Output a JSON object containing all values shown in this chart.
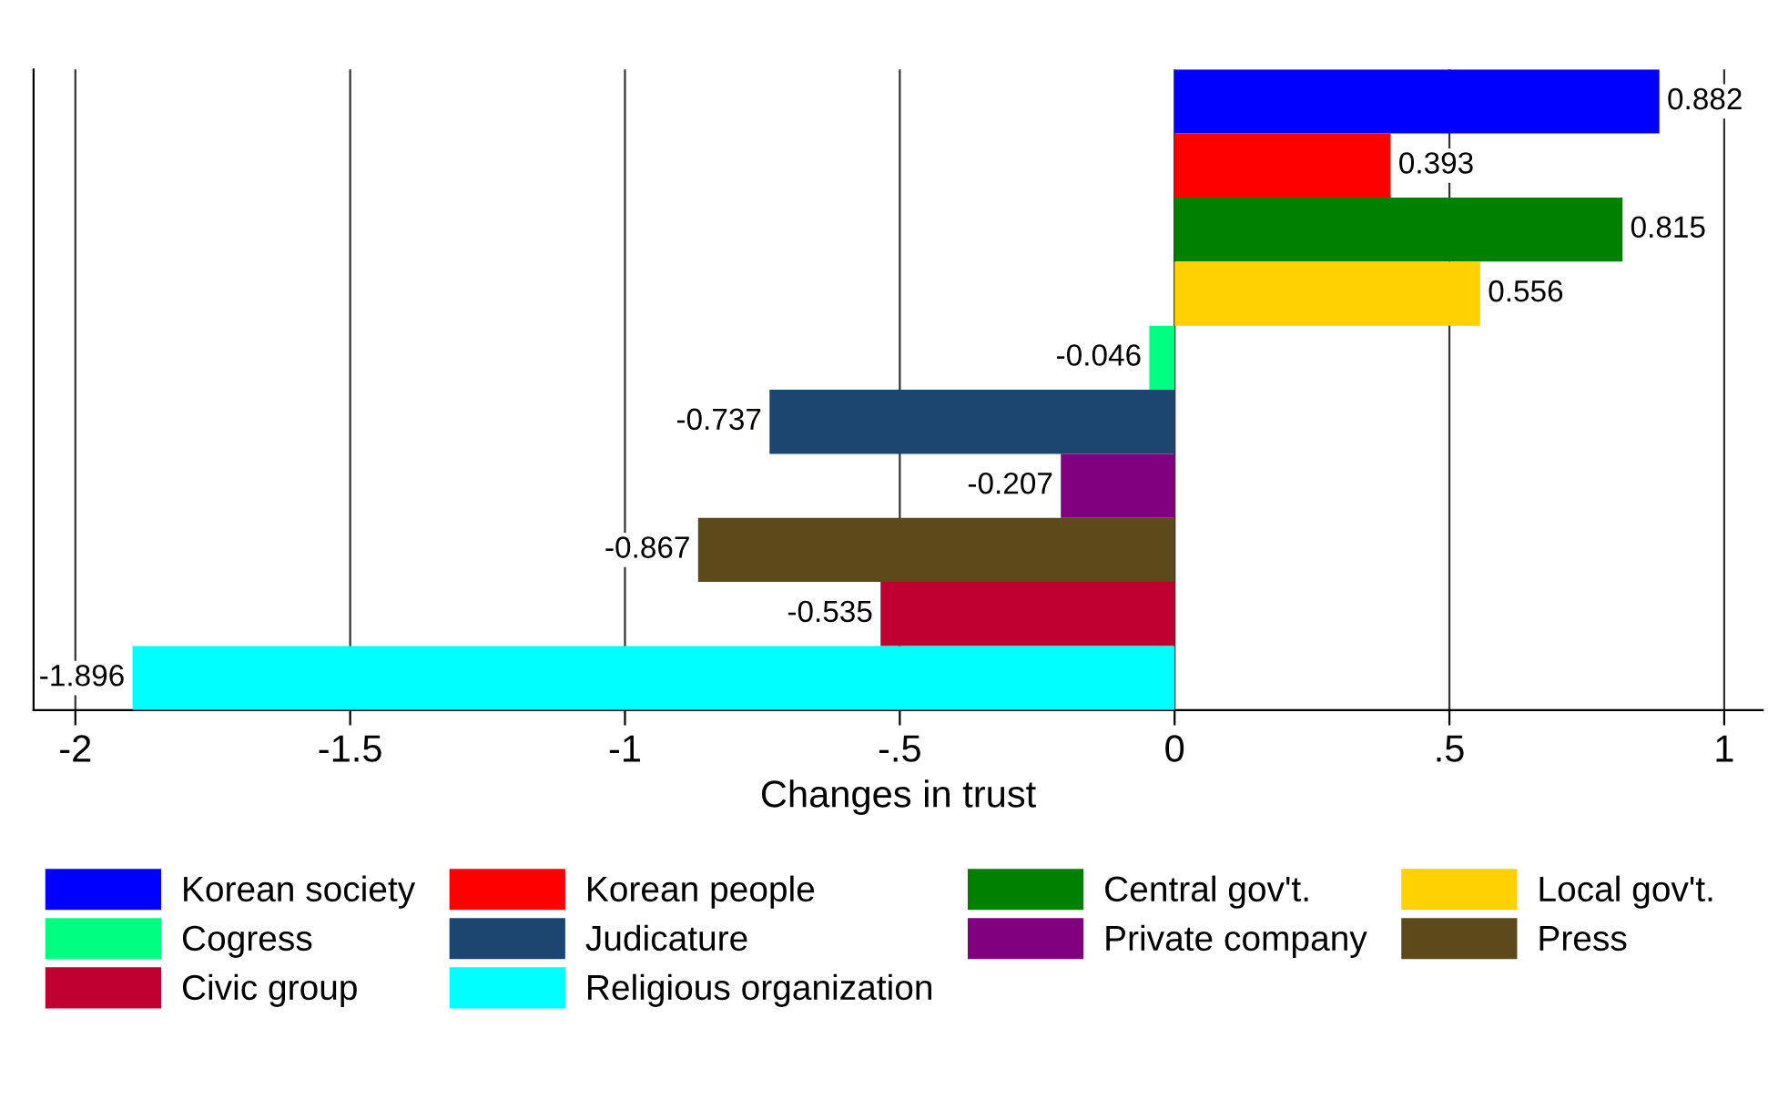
{
  "chart_data": {
    "type": "bar",
    "orientation": "horizontal",
    "xlabel": "Changes in trust",
    "categories": [
      null,
      null,
      null,
      null,
      null,
      null,
      null,
      null,
      null,
      null
    ],
    "series": [
      {
        "name": "Korean society",
        "color": "#0000ff",
        "values": [
          0.882,
          null,
          null,
          null,
          null,
          null,
          null,
          null,
          null,
          null
        ]
      },
      {
        "name": "Korean people",
        "color": "#ff0000",
        "values": [
          null,
          0.393,
          null,
          null,
          null,
          null,
          null,
          null,
          null,
          null
        ]
      },
      {
        "name": "Central gov't.",
        "color": "#008000",
        "values": [
          null,
          null,
          0.815,
          null,
          null,
          null,
          null,
          null,
          null,
          null
        ]
      },
      {
        "name": "Local gov't.",
        "color": "#ffd200",
        "values": [
          null,
          null,
          null,
          0.556,
          null,
          null,
          null,
          null,
          null,
          null
        ]
      },
      {
        "name": "Cogress",
        "color": "#00ff80",
        "values": [
          null,
          null,
          null,
          null,
          -0.046,
          null,
          null,
          null,
          null,
          null
        ]
      },
      {
        "name": "Judicature",
        "color": "#1c4670",
        "values": [
          null,
          null,
          null,
          null,
          null,
          -0.737,
          null,
          null,
          null,
          null
        ]
      },
      {
        "name": "Private company",
        "color": "#800080",
        "values": [
          null,
          null,
          null,
          null,
          null,
          null,
          -0.207,
          null,
          null,
          null
        ]
      },
      {
        "name": "Press",
        "color": "#5c4a1a",
        "values": [
          null,
          null,
          null,
          null,
          null,
          null,
          null,
          -0.867,
          null,
          null
        ]
      },
      {
        "name": "Civic group",
        "color": "#c00030",
        "values": [
          null,
          null,
          null,
          null,
          null,
          null,
          null,
          null,
          -0.535,
          null
        ]
      },
      {
        "name": "Religious organization",
        "color": "#00ffff",
        "values": [
          null,
          null,
          null,
          null,
          null,
          null,
          null,
          null,
          null,
          -1.896
        ]
      }
    ],
    "xlim": [
      -2.076,
      1.07
    ],
    "xticks": [
      -2,
      -1.5,
      -1,
      {
        "value": -0.5,
        "label": "-.5"
      },
      0,
      {
        "value": 0.5,
        "label": ".5"
      },
      1
    ],
    "grid": "x",
    "data_labels": true,
    "legend": "bottom"
  }
}
